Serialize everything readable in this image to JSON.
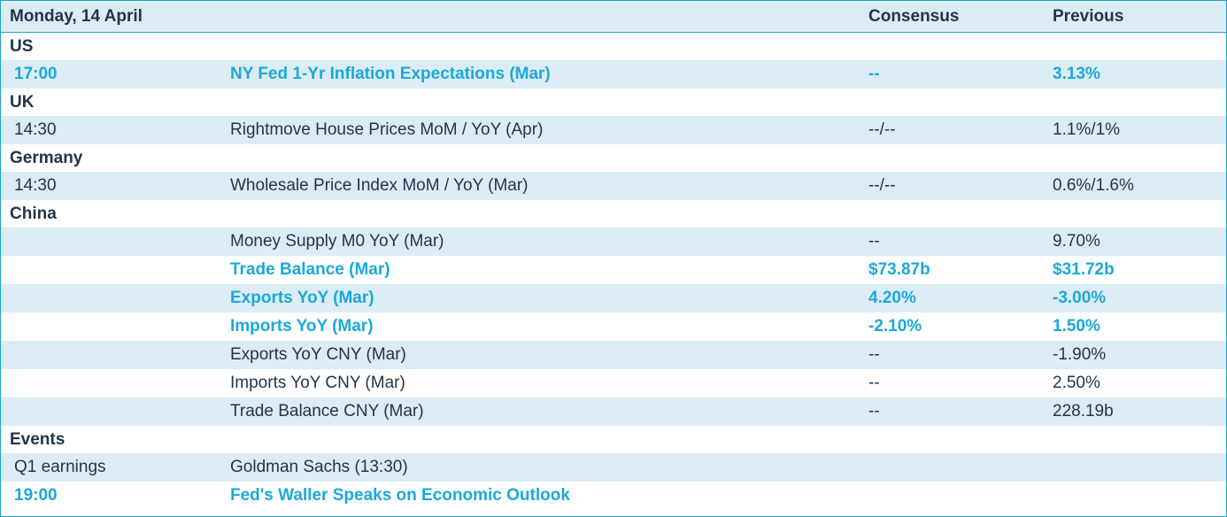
{
  "header": {
    "date": "Monday, 14 April",
    "consensus_label": "Consensus",
    "previous_label": "Previous"
  },
  "colors": {
    "accent": "#1aa9dc",
    "row_shade": "#dcecf5",
    "text": "#1f3548",
    "border": "#1fa3c8"
  },
  "sections": [
    {
      "name": "US",
      "rows": [
        {
          "time": "17:00",
          "event": "NY Fed 1-Yr Inflation Expectations (Mar)",
          "consensus": "--",
          "previous": "3.13%",
          "highlight": true
        }
      ]
    },
    {
      "name": "UK",
      "rows": [
        {
          "time": "14:30",
          "event": "Rightmove House Prices MoM / YoY (Apr)",
          "consensus": "--/--",
          "previous": "1.1%/1%",
          "highlight": false
        }
      ]
    },
    {
      "name": "Germany",
      "rows": [
        {
          "time": "14:30",
          "event": "Wholesale Price Index MoM / YoY (Mar)",
          "consensus": "--/--",
          "previous": "0.6%/1.6%",
          "highlight": false
        }
      ]
    },
    {
      "name": "China",
      "rows": [
        {
          "time": "",
          "event": "Money Supply M0 YoY (Mar)",
          "consensus": "--",
          "previous": "9.70%",
          "highlight": false
        },
        {
          "time": "",
          "event": "Trade Balance (Mar)",
          "consensus": "$73.87b",
          "previous": "$31.72b",
          "highlight": true
        },
        {
          "time": "",
          "event": "Exports YoY (Mar)",
          "consensus": "4.20%",
          "previous": "-3.00%",
          "highlight": true
        },
        {
          "time": "",
          "event": "Imports YoY (Mar)",
          "consensus": "-2.10%",
          "previous": "1.50%",
          "highlight": true
        },
        {
          "time": "",
          "event": "Exports YoY CNY (Mar)",
          "consensus": "--",
          "previous": "-1.90%",
          "highlight": false
        },
        {
          "time": "",
          "event": "Imports YoY CNY (Mar)",
          "consensus": "--",
          "previous": "2.50%",
          "highlight": false
        },
        {
          "time": "",
          "event": "Trade Balance CNY (Mar)",
          "consensus": "--",
          "previous": "228.19b",
          "highlight": false
        }
      ]
    },
    {
      "name": "Events",
      "rows": [
        {
          "time": "Q1 earnings",
          "event": "Goldman Sachs (13:30)",
          "consensus": "",
          "previous": "",
          "highlight": false
        },
        {
          "time": "19:00",
          "event": "Fed's Waller Speaks on Economic Outlook",
          "consensus": "",
          "previous": "",
          "highlight": true
        }
      ]
    }
  ]
}
